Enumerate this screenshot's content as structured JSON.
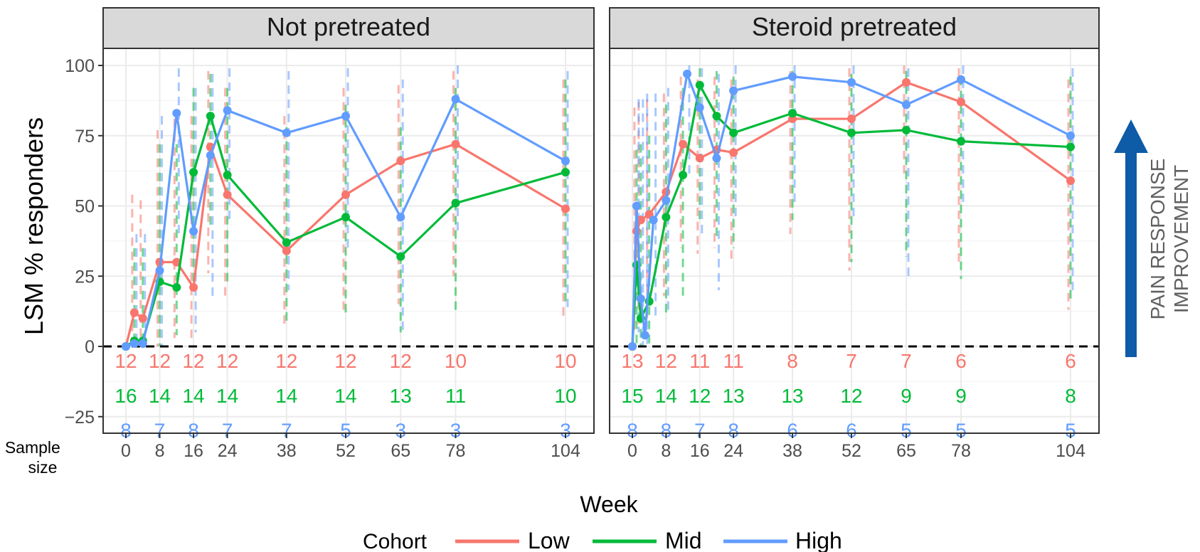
{
  "chart_data": [
    {
      "type": "line",
      "panel_title": "Not pretreated",
      "xlabel": "Week",
      "ylabel": "LSM % responders",
      "ylim": [
        -30,
        105
      ],
      "yticks": [
        -25,
        0,
        25,
        50,
        75,
        100
      ],
      "xticks": [
        0,
        8,
        16,
        24,
        38,
        52,
        65,
        78,
        104
      ],
      "xlim": [
        -2,
        107
      ],
      "series": [
        {
          "name": "Low",
          "color": "#F8766D",
          "points": [
            [
              0,
              0
            ],
            [
              2,
              12
            ],
            [
              4,
              10
            ],
            [
              8,
              30
            ],
            [
              12,
              30
            ],
            [
              16,
              21
            ],
            [
              20,
              71
            ],
            [
              24,
              54
            ],
            [
              38,
              34
            ],
            [
              52,
              54
            ],
            [
              65,
              66
            ],
            [
              78,
              72
            ],
            [
              104,
              49
            ]
          ],
          "ci_lower": [
            null,
            0,
            0,
            0,
            3,
            2,
            26,
            16,
            7,
            13,
            15,
            25,
            10
          ],
          "ci_upper": [
            null,
            54,
            52,
            77,
            81,
            82,
            98,
            92,
            82,
            92,
            93,
            98,
            95
          ]
        },
        {
          "name": "Mid",
          "color": "#00BA38",
          "points": [
            [
              0,
              0
            ],
            [
              2,
              2
            ],
            [
              4,
              2
            ],
            [
              8,
              23
            ],
            [
              12,
              21
            ],
            [
              16,
              62
            ],
            [
              20,
              82
            ],
            [
              24,
              61
            ],
            [
              38,
              37
            ],
            [
              52,
              46
            ],
            [
              65,
              32
            ],
            [
              78,
              51
            ],
            [
              104,
              62
            ]
          ],
          "ci_lower": [
            null,
            0,
            0,
            0,
            4,
            20,
            42,
            22,
            8,
            10,
            5,
            12,
            16
          ],
          "ci_upper": [
            null,
            35,
            35,
            72,
            72,
            92,
            97,
            92,
            78,
            86,
            78,
            92,
            95
          ]
        },
        {
          "name": "High",
          "color": "#619CFF",
          "points": [
            [
              0,
              0
            ],
            [
              2,
              1
            ],
            [
              4,
              1
            ],
            [
              8,
              27
            ],
            [
              12,
              83
            ],
            [
              16,
              41
            ],
            [
              20,
              68
            ],
            [
              24,
              84
            ],
            [
              38,
              76
            ],
            [
              52,
              82
            ],
            [
              65,
              46
            ],
            [
              78,
              88
            ],
            [
              104,
              66
            ]
          ],
          "ci_lower": [
            null,
            0,
            0,
            0,
            40,
            5,
            18,
            45,
            20,
            35,
            5,
            40,
            14
          ],
          "ci_upper": [
            null,
            40,
            40,
            82,
            99,
            92,
            97,
            99,
            98,
            99,
            95,
            100,
            98
          ]
        }
      ],
      "sample_size": {
        "x": [
          0,
          8,
          16,
          24,
          38,
          52,
          65,
          78,
          104
        ],
        "Low": [
          "12",
          "12",
          "12",
          "12",
          "12",
          "12",
          "12",
          "10",
          "10"
        ],
        "Mid": [
          "16",
          "14",
          "14",
          "14",
          "14",
          "14",
          "13",
          "11",
          "10"
        ],
        "High": [
          "8",
          "7",
          "8",
          "7",
          "7",
          "5",
          "3",
          "3",
          "3"
        ]
      }
    },
    {
      "type": "line",
      "panel_title": "Steroid pretreated",
      "xlabel": "Week",
      "ylabel": "LSM % responders",
      "ylim": [
        -30,
        105
      ],
      "yticks": [
        -25,
        0,
        25,
        50,
        75,
        100
      ],
      "xticks": [
        0,
        8,
        16,
        24,
        38,
        52,
        65,
        78,
        104
      ],
      "xlim": [
        -2,
        107
      ],
      "series": [
        {
          "name": "Low",
          "color": "#F8766D",
          "points": [
            [
              0,
              0
            ],
            [
              1,
              41
            ],
            [
              2,
              45
            ],
            [
              4,
              47
            ],
            [
              8,
              55
            ],
            [
              12,
              72
            ],
            [
              16,
              67
            ],
            [
              20,
              70
            ],
            [
              24,
              69
            ],
            [
              38,
              81
            ],
            [
              52,
              81
            ],
            [
              65,
              94
            ],
            [
              78,
              87
            ],
            [
              104,
              59
            ]
          ],
          "ci_lower": [
            null,
            5,
            8,
            10,
            18,
            35,
            33,
            35,
            30,
            40,
            27,
            60,
            30,
            13
          ],
          "ci_upper": [
            null,
            85,
            87,
            88,
            90,
            96,
            95,
            96,
            95,
            98,
            99,
            100,
            99,
            95
          ]
        },
        {
          "name": "Mid",
          "color": "#00BA38",
          "points": [
            [
              0,
              0
            ],
            [
              1,
              29
            ],
            [
              2,
              10
            ],
            [
              4,
              16
            ],
            [
              8,
              46
            ],
            [
              12,
              61
            ],
            [
              16,
              93
            ],
            [
              20,
              82
            ],
            [
              24,
              76
            ],
            [
              38,
              83
            ],
            [
              52,
              76
            ],
            [
              65,
              77
            ],
            [
              78,
              73
            ],
            [
              104,
              71
            ]
          ],
          "ci_lower": [
            null,
            0,
            0,
            0,
            10,
            18,
            45,
            38,
            35,
            45,
            30,
            32,
            24,
            15
          ],
          "ci_upper": [
            null,
            70,
            72,
            75,
            86,
            92,
            99,
            98,
            96,
            98,
            97,
            98,
            96,
            96
          ]
        },
        {
          "name": "High",
          "color": "#619CFF",
          "points": [
            [
              0,
              0
            ],
            [
              1,
              50
            ],
            [
              2,
              17
            ],
            [
              3,
              4
            ],
            [
              5,
              45
            ],
            [
              8,
              52
            ],
            [
              13,
              97
            ],
            [
              16,
              85
            ],
            [
              20,
              67
            ],
            [
              24,
              91
            ],
            [
              38,
              96
            ],
            [
              52,
              94
            ],
            [
              65,
              86
            ],
            [
              78,
              95
            ],
            [
              104,
              75
            ]
          ],
          "ci_lower": [
            null,
            5,
            0,
            0,
            10,
            12,
            60,
            40,
            20,
            45,
            50,
            45,
            25,
            50,
            20
          ],
          "ci_upper": [
            null,
            88,
            88,
            90,
            90,
            92,
            100,
            99,
            97,
            100,
            100,
            100,
            99,
            100,
            99
          ]
        }
      ],
      "sample_size": {
        "x": [
          0,
          8,
          16,
          24,
          38,
          52,
          65,
          78,
          104
        ],
        "Low": [
          "13",
          "12",
          "11",
          "11",
          "8",
          "7",
          "7",
          "6",
          "6"
        ],
        "Mid": [
          "15",
          "14",
          "12",
          "13",
          "13",
          "12",
          "9",
          "9",
          "8"
        ],
        "High": [
          "8",
          "8",
          "7",
          "8",
          "6",
          "6",
          "5",
          "5",
          "5"
        ]
      }
    }
  ],
  "labels": {
    "sample_size": "Sample\nsize",
    "week": "Week",
    "ylabel": "LSM % responders",
    "legend_title": "Cohort",
    "arrow_text_line1": "PAIN RESPONSE",
    "arrow_text_line2": "IMPROVEMENT"
  },
  "colors": {
    "Low": "#F8766D",
    "Mid": "#00BA38",
    "High": "#619CFF",
    "arrow": "#0E5BA8",
    "strip": "#D9D9D9",
    "grid": "#EBEBEB"
  }
}
